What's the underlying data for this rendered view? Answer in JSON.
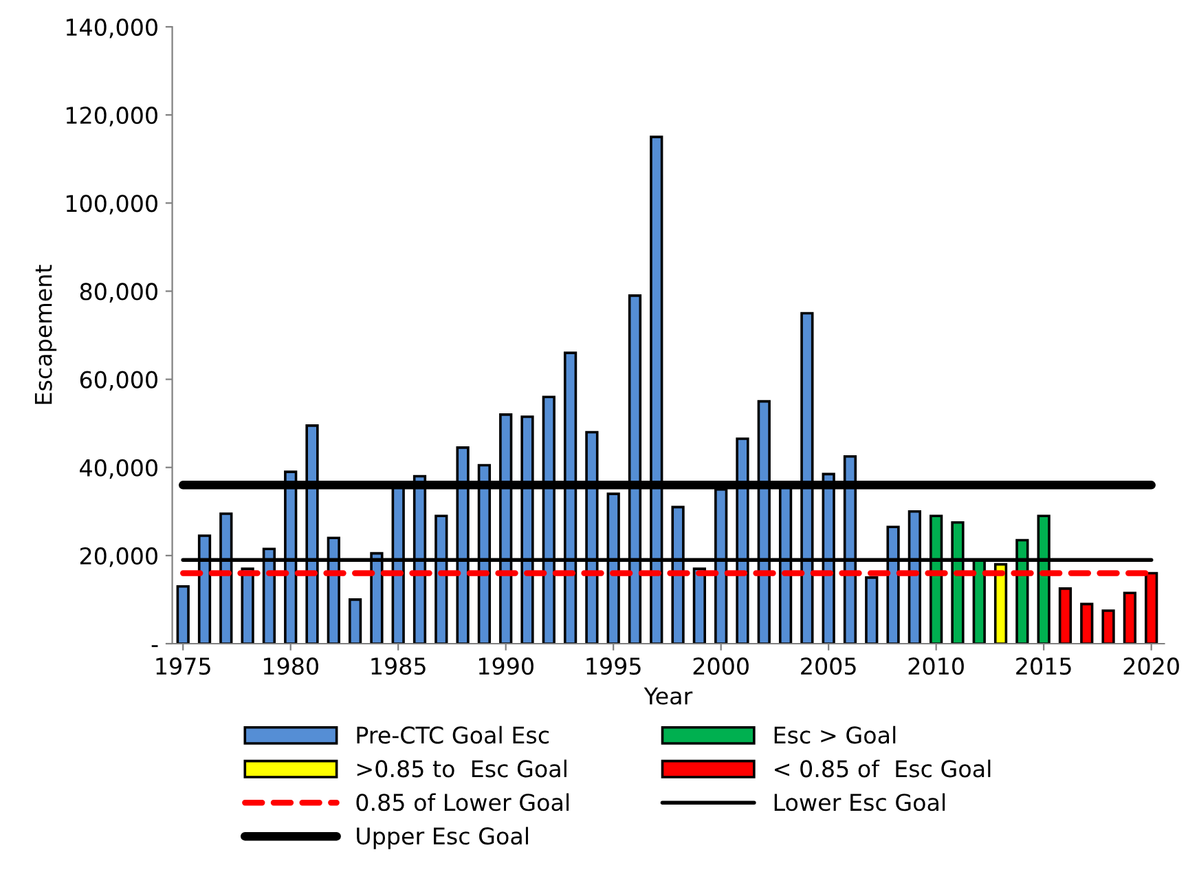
{
  "chart_data": {
    "type": "bar",
    "xlabel": "Year",
    "ylabel": "Escapement",
    "xlim": [
      1974.5,
      2020.6
    ],
    "xticks": [
      1975,
      1980,
      1985,
      1990,
      1995,
      2000,
      2005,
      2010,
      2015,
      2020
    ],
    "ylim": [
      0,
      140000
    ],
    "yticks": [
      {
        "value": 0,
        "label": "-"
      },
      {
        "value": 20000,
        "label": "20,000"
      },
      {
        "value": 40000,
        "label": "40,000"
      },
      {
        "value": 60000,
        "label": "60,000"
      },
      {
        "value": 80000,
        "label": "80,000"
      },
      {
        "value": 100000,
        "label": "100,000"
      },
      {
        "value": 120000,
        "label": "120,000"
      },
      {
        "value": 140000,
        "label": "140,000"
      }
    ],
    "grid": false,
    "legend": "bottom",
    "series": [
      {
        "name": "Pre-CTC Goal Esc",
        "color": "#558ed5",
        "x": [
          1975,
          1976,
          1977,
          1978,
          1979,
          1980,
          1981,
          1982,
          1983,
          1984,
          1985,
          1986,
          1987,
          1988,
          1989,
          1990,
          1991,
          1992,
          1993,
          1994,
          1995,
          1996,
          1997,
          1998,
          1999,
          2000,
          2001,
          2002,
          2003,
          2004,
          2005,
          2006,
          2007,
          2008,
          2009
        ],
        "values": [
          13000,
          24500,
          29500,
          17000,
          21500,
          39000,
          49500,
          24000,
          10000,
          20500,
          36000,
          38000,
          29000,
          44500,
          40500,
          52000,
          51500,
          56000,
          66000,
          48000,
          34000,
          79000,
          115000,
          31000,
          17000,
          35000,
          46500,
          55000,
          36000,
          75000,
          38500,
          42500,
          15000,
          26500,
          30000
        ]
      },
      {
        "name": "Esc > Goal",
        "color": "#00b050",
        "x": [
          2010,
          2011,
          2012,
          2014,
          2015
        ],
        "values": [
          29000,
          27500,
          19000,
          23500,
          29000
        ]
      },
      {
        "name": ">0.85 to  Esc Goal",
        "color": "#ffff00",
        "x": [
          2013
        ],
        "values": [
          18000
        ]
      },
      {
        "name": "< 0.85 of  Esc Goal",
        "color": "#ff0000",
        "x": [
          2016,
          2017,
          2018,
          2019,
          2020
        ],
        "values": [
          12500,
          9000,
          7500,
          11500,
          16000
        ]
      },
      {
        "name": "0.85 of Lower Goal",
        "type": "line",
        "color": "#ff0000",
        "line_style": "dashed",
        "x": [
          1975,
          2020
        ],
        "values": [
          16000,
          16000
        ]
      },
      {
        "name": "Lower Esc Goal",
        "type": "line",
        "color": "#000000",
        "line_style": "solid",
        "x": [
          1975,
          2020
        ],
        "values": [
          19000,
          19000
        ]
      },
      {
        "name": "Upper Esc Goal",
        "type": "line",
        "color": "#000000",
        "line_style": "solid",
        "x": [
          1975,
          2020
        ],
        "values": [
          36000,
          36000
        ]
      }
    ]
  }
}
